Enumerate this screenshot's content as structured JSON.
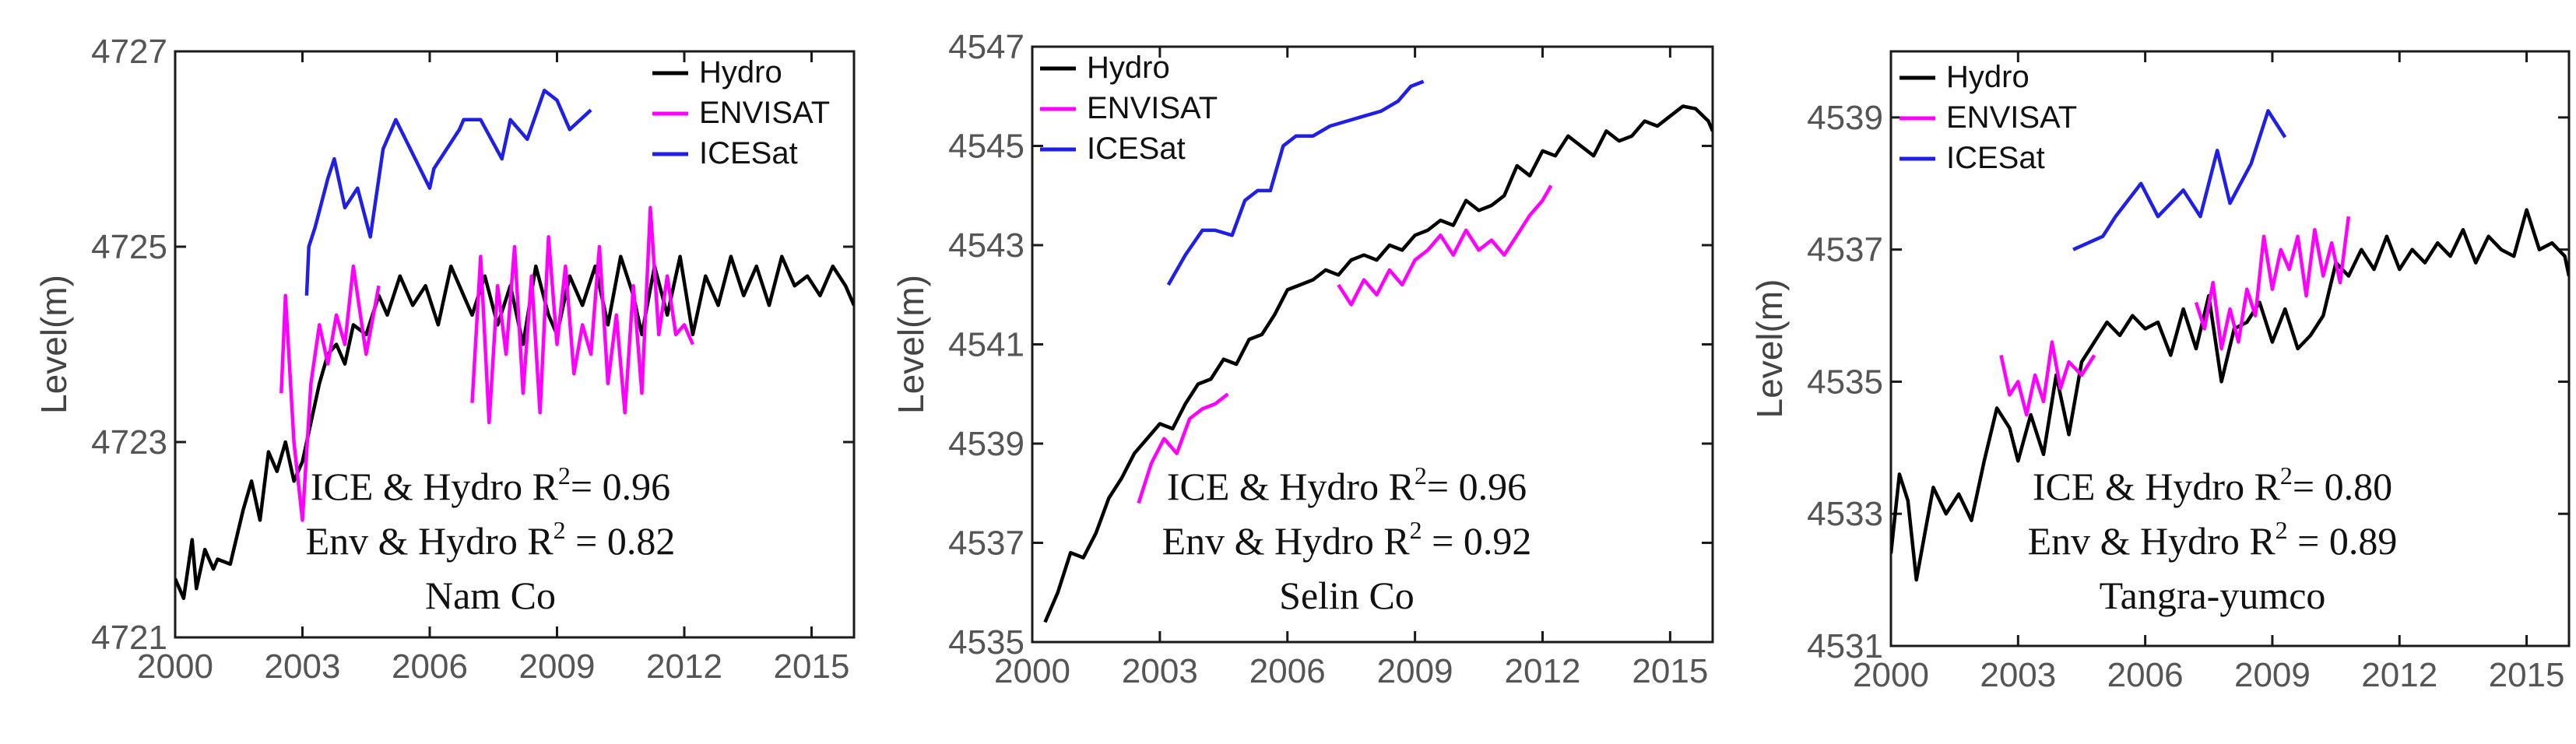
{
  "colors": {
    "hydro": "#000000",
    "envisat": "#ff00ff",
    "icesat": "#1f1fe6",
    "axis": "#1a1a1a",
    "tick_text": "#555555"
  },
  "chart_data": [
    {
      "type": "line",
      "panel_name": "Nam Co",
      "xlabel": "",
      "ylabel": "Level(m)",
      "xlim": [
        2000,
        2016
      ],
      "ylim": [
        4721,
        4727
      ],
      "x_ticks": [
        2000,
        2003,
        2006,
        2009,
        2012,
        2015
      ],
      "x_tick_labels": [
        "2000",
        "2003",
        "2006",
        "2009",
        "2012",
        "2015"
      ],
      "y_ticks": [
        4721,
        4723,
        4725,
        4727
      ],
      "y_tick_labels": [
        "4721",
        "4723",
        "4725",
        "4727"
      ],
      "legend": {
        "position": "top-right",
        "entries": [
          "Hydro",
          "ENVISAT",
          "ICESat"
        ]
      },
      "annotations": [
        {
          "lead": "ICE & Hydro R",
          "sup": "2",
          "tail": "= 0.96"
        },
        {
          "lead": "Env & Hydro R",
          "sup": "2",
          "tail": " = 0.82"
        },
        {
          "lead": "Nam Co",
          "sup": "",
          "tail": ""
        }
      ],
      "series": [
        {
          "name": "Hydro",
          "x": [
            2000.0,
            2000.2,
            2000.4,
            2000.5,
            2000.7,
            2000.9,
            2001.0,
            2001.3,
            2001.6,
            2001.8,
            2002.0,
            2002.2,
            2002.4,
            2002.6,
            2002.8,
            2003.0,
            2003.2,
            2003.4,
            2003.6,
            2003.8,
            2004.0,
            2004.2,
            2004.5,
            2004.8,
            2005.0,
            2005.3,
            2005.6,
            2005.9,
            2006.2,
            2006.5,
            2006.8,
            2007.0,
            2007.3,
            2007.6,
            2007.9,
            2008.2,
            2008.5,
            2008.8,
            2009.0,
            2009.3,
            2009.6,
            2009.9,
            2010.2,
            2010.5,
            2010.8,
            2011.0,
            2011.3,
            2011.6,
            2011.9,
            2012.2,
            2012.5,
            2012.8,
            2013.1,
            2013.4,
            2013.7,
            2014.0,
            2014.3,
            2014.6,
            2014.9,
            2015.2,
            2015.5,
            2015.8,
            2016.0
          ],
          "y": [
            4721.6,
            4721.4,
            4722.0,
            4721.5,
            4721.9,
            4721.7,
            4721.8,
            4721.75,
            4722.3,
            4722.6,
            4722.2,
            4722.9,
            4722.7,
            4723.0,
            4722.6,
            4722.8,
            4723.2,
            4723.6,
            4723.9,
            4724.0,
            4723.8,
            4724.2,
            4724.1,
            4724.5,
            4724.3,
            4724.7,
            4724.4,
            4724.6,
            4724.2,
            4724.8,
            4724.5,
            4724.3,
            4724.7,
            4724.2,
            4724.6,
            4724.0,
            4724.8,
            4724.3,
            4724.1,
            4724.7,
            4724.4,
            4724.8,
            4724.2,
            4724.9,
            4724.5,
            4724.1,
            4724.8,
            4724.3,
            4724.9,
            4724.1,
            4724.7,
            4724.4,
            4724.9,
            4724.5,
            4724.8,
            4724.4,
            4724.9,
            4724.6,
            4724.7,
            4724.5,
            4724.8,
            4724.6,
            4724.4
          ]
        },
        {
          "name": "ENVISAT",
          "x": [
            2002.5,
            2002.6,
            2002.8,
            2003.0,
            2003.2,
            2003.4,
            2003.6,
            2003.8,
            2004.0,
            2004.2,
            2004.5,
            2004.8,
            2007.0,
            2007.2,
            2007.4,
            2007.6,
            2007.8,
            2008.0,
            2008.2,
            2008.4,
            2008.6,
            2008.8,
            2009.0,
            2009.2,
            2009.4,
            2009.6,
            2009.8,
            2010.0,
            2010.2,
            2010.4,
            2010.6,
            2010.8,
            2011.0,
            2011.2,
            2011.4,
            2011.6,
            2011.8,
            2012.0,
            2012.2
          ],
          "y": [
            4723.5,
            4724.5,
            4723.0,
            4722.2,
            4723.6,
            4724.2,
            4723.8,
            4724.3,
            4724.0,
            4724.8,
            4723.9,
            4724.6,
            4723.4,
            4724.9,
            4723.2,
            4724.6,
            4723.9,
            4725.0,
            4723.5,
            4724.7,
            4723.3,
            4725.1,
            4724.0,
            4724.8,
            4723.7,
            4724.2,
            4723.9,
            4725.0,
            4723.6,
            4724.3,
            4723.3,
            4724.6,
            4723.5,
            4725.4,
            4724.1,
            4724.7,
            4724.1,
            4724.2,
            4724.0
          ]
        },
        {
          "name": "ICESat",
          "x": [
            2003.1,
            2003.15,
            2003.3,
            2003.6,
            2003.75,
            2004.0,
            2004.3,
            2004.6,
            2004.9,
            2005.2,
            2006.0,
            2006.1,
            2006.7,
            2006.8,
            2007.2,
            2007.7,
            2007.9,
            2008.3,
            2008.7,
            2009.0,
            2009.3,
            2009.8
          ],
          "y": [
            4724.5,
            4725.0,
            4725.2,
            4725.7,
            4725.9,
            4725.4,
            4725.6,
            4725.1,
            4726.0,
            4726.3,
            4725.6,
            4725.8,
            4726.2,
            4726.3,
            4726.3,
            4725.9,
            4726.3,
            4726.1,
            4726.6,
            4726.5,
            4726.2,
            4726.4
          ]
        }
      ]
    },
    {
      "type": "line",
      "panel_name": "Selin Co",
      "xlabel": "",
      "ylabel": "Level(m)",
      "xlim": [
        2000,
        2016
      ],
      "ylim": [
        4535,
        4547
      ],
      "x_ticks": [
        2000,
        2003,
        2006,
        2009,
        2012,
        2015
      ],
      "x_tick_labels": [
        "2000",
        "2003",
        "2006",
        "2009",
        "2012",
        "2015"
      ],
      "y_ticks": [
        4535,
        4537,
        4539,
        4541,
        4543,
        4545,
        4547
      ],
      "y_tick_labels": [
        "4535",
        "4537",
        "4539",
        "4541",
        "4543",
        "4545",
        "4547"
      ],
      "legend": {
        "position": "top-left",
        "entries": [
          "Hydro",
          "ENVISAT",
          "ICESat"
        ]
      },
      "annotations": [
        {
          "lead": "ICE & Hydro R",
          "sup": "2",
          "tail": "= 0.96"
        },
        {
          "lead": "Env & Hydro R",
          "sup": "2",
          "tail": " = 0.92"
        },
        {
          "lead": "Selin Co",
          "sup": "",
          "tail": ""
        }
      ],
      "series": [
        {
          "name": "Hydro",
          "x": [
            2000.3,
            2000.6,
            2000.9,
            2001.2,
            2001.5,
            2001.8,
            2002.1,
            2002.4,
            2002.7,
            2003.0,
            2003.3,
            2003.6,
            2003.9,
            2004.2,
            2004.5,
            2004.8,
            2005.1,
            2005.4,
            2005.7,
            2006.0,
            2006.3,
            2006.6,
            2006.9,
            2007.2,
            2007.5,
            2007.8,
            2008.1,
            2008.4,
            2008.7,
            2009.0,
            2009.3,
            2009.6,
            2009.9,
            2010.2,
            2010.5,
            2010.8,
            2011.1,
            2011.4,
            2011.7,
            2012.0,
            2012.3,
            2012.6,
            2012.9,
            2013.2,
            2013.5,
            2013.8,
            2014.1,
            2014.4,
            2014.7,
            2015.0,
            2015.3,
            2015.6,
            2015.9,
            2016.0
          ],
          "y": [
            4535.4,
            4536.0,
            4536.8,
            4536.7,
            4537.2,
            4537.9,
            4538.3,
            4538.8,
            4539.1,
            4539.4,
            4539.3,
            4539.8,
            4540.2,
            4540.3,
            4540.7,
            4540.6,
            4541.1,
            4541.2,
            4541.6,
            4542.1,
            4542.2,
            4542.3,
            4542.5,
            4542.4,
            4542.7,
            4542.8,
            4542.7,
            4543.0,
            4542.9,
            4543.2,
            4543.3,
            4543.5,
            4543.4,
            4543.9,
            4543.7,
            4543.8,
            4544.0,
            4544.6,
            4544.4,
            4544.9,
            4544.8,
            4545.2,
            4545.0,
            4544.8,
            4545.3,
            4545.1,
            4545.2,
            4545.5,
            4545.4,
            4545.6,
            4545.8,
            4545.75,
            4545.5,
            4545.3
          ]
        },
        {
          "name": "ENVISAT",
          "x": [
            2002.5,
            2002.8,
            2003.1,
            2003.4,
            2003.7,
            2004.0,
            2004.3,
            2004.6,
            2007.2,
            2007.5,
            2007.8,
            2008.1,
            2008.4,
            2008.7,
            2009.0,
            2009.3,
            2009.6,
            2009.9,
            2010.2,
            2010.5,
            2010.8,
            2011.1,
            2011.4,
            2011.7,
            2012.0,
            2012.2
          ],
          "y": [
            4537.8,
            4538.6,
            4539.1,
            4538.8,
            4539.5,
            4539.7,
            4539.8,
            4540.0,
            4542.2,
            4541.8,
            4542.3,
            4542.0,
            4542.5,
            4542.2,
            4542.7,
            4542.9,
            4543.2,
            4542.8,
            4543.3,
            4542.9,
            4543.1,
            4542.8,
            4543.2,
            4543.6,
            4543.9,
            4544.2
          ]
        },
        {
          "name": "ICESat",
          "x": [
            2003.2,
            2003.6,
            2004.0,
            2004.3,
            2004.7,
            2005.0,
            2005.3,
            2005.6,
            2005.9,
            2006.2,
            2006.6,
            2007.0,
            2007.4,
            2007.8,
            2008.2,
            2008.6,
            2008.9,
            2009.2
          ],
          "y": [
            4542.2,
            4542.8,
            4543.3,
            4543.3,
            4543.2,
            4543.9,
            4544.1,
            4544.1,
            4545.0,
            4545.2,
            4545.2,
            4545.4,
            4545.5,
            4545.6,
            4545.7,
            4545.9,
            4546.2,
            4546.3
          ]
        }
      ]
    },
    {
      "type": "line",
      "panel_name": "Tangra-yumco",
      "xlabel": "",
      "ylabel": "Level(m)",
      "xlim": [
        2000,
        2016
      ],
      "ylim": [
        4531,
        4540
      ],
      "x_ticks": [
        2000,
        2003,
        2006,
        2009,
        2012,
        2015
      ],
      "x_tick_labels": [
        "2000",
        "2003",
        "2006",
        "2009",
        "2012",
        "2015"
      ],
      "y_ticks": [
        4531,
        4533,
        4535,
        4537,
        4539
      ],
      "y_tick_labels": [
        "4531",
        "4533",
        "4535",
        "4537",
        "4539"
      ],
      "legend": {
        "position": "top-left",
        "entries": [
          "Hydro",
          "ENVISAT",
          "ICESat"
        ]
      },
      "annotations": [
        {
          "lead": "ICE & Hydro R",
          "sup": "2",
          "tail": "= 0.80"
        },
        {
          "lead": "Env & Hydro R",
          "sup": "2",
          "tail": " = 0.89"
        },
        {
          "lead": "Tangra-yumco",
          "sup": "",
          "tail": ""
        }
      ],
      "series": [
        {
          "name": "Hydro",
          "x": [
            2000.0,
            2000.2,
            2000.4,
            2000.6,
            2000.8,
            2001.0,
            2001.3,
            2001.6,
            2001.9,
            2002.2,
            2002.5,
            2002.8,
            2003.0,
            2003.3,
            2003.6,
            2003.9,
            2004.2,
            2004.5,
            2004.8,
            2005.1,
            2005.4,
            2005.7,
            2006.0,
            2006.3,
            2006.6,
            2006.9,
            2007.2,
            2007.5,
            2007.8,
            2008.1,
            2008.4,
            2008.7,
            2009.0,
            2009.3,
            2009.6,
            2009.9,
            2010.2,
            2010.5,
            2010.8,
            2011.1,
            2011.4,
            2011.7,
            2012.0,
            2012.3,
            2012.6,
            2012.9,
            2013.2,
            2013.5,
            2013.8,
            2014.1,
            2014.4,
            2014.7,
            2015.0,
            2015.3,
            2015.6,
            2015.9,
            2016.0
          ],
          "y": [
            4532.4,
            4533.6,
            4533.2,
            4532.0,
            4532.7,
            4533.4,
            4533.0,
            4533.3,
            4532.9,
            4533.8,
            4534.6,
            4534.3,
            4533.8,
            4534.5,
            4533.9,
            4535.1,
            4534.2,
            4535.3,
            4535.6,
            4535.9,
            4535.7,
            4536.0,
            4535.8,
            4535.9,
            4535.4,
            4536.1,
            4535.5,
            4536.3,
            4535.0,
            4535.8,
            4535.9,
            4536.2,
            4535.6,
            4536.1,
            4535.5,
            4535.7,
            4536.0,
            4536.8,
            4536.6,
            4537.0,
            4536.7,
            4537.2,
            4536.7,
            4537.0,
            4536.8,
            4537.1,
            4536.9,
            4537.3,
            4536.8,
            4537.2,
            4537.0,
            4536.9,
            4537.6,
            4537.0,
            4537.1,
            4536.9,
            4536.6
          ]
        },
        {
          "name": "ENVISAT",
          "x": [
            2002.6,
            2002.8,
            2003.0,
            2003.2,
            2003.4,
            2003.6,
            2003.8,
            2004.0,
            2004.2,
            2004.5,
            2004.8,
            2007.2,
            2007.4,
            2007.6,
            2007.8,
            2008.0,
            2008.2,
            2008.4,
            2008.6,
            2008.8,
            2009.0,
            2009.2,
            2009.4,
            2009.6,
            2009.8,
            2010.0,
            2010.2,
            2010.4,
            2010.6,
            2010.8
          ],
          "y": [
            4535.4,
            4534.8,
            4535.0,
            4534.5,
            4535.1,
            4534.7,
            4535.6,
            4534.9,
            4535.3,
            4535.1,
            4535.4,
            4536.2,
            4535.8,
            4536.5,
            4535.5,
            4536.1,
            4535.6,
            4536.4,
            4536.0,
            4537.2,
            4536.4,
            4537.0,
            4536.7,
            4537.2,
            4536.3,
            4537.3,
            4536.6,
            4537.1,
            4536.5,
            4537.5
          ]
        },
        {
          "name": "ICESat",
          "x": [
            2004.3,
            2005.0,
            2005.3,
            2005.9,
            2006.3,
            2006.9,
            2007.3,
            2007.7,
            2008.0,
            2008.5,
            2008.9,
            2009.3
          ],
          "y": [
            4537.0,
            4537.2,
            4537.5,
            4538.0,
            4537.5,
            4537.9,
            4537.5,
            4538.5,
            4537.7,
            4538.3,
            4539.1,
            4538.7
          ]
        }
      ]
    }
  ]
}
